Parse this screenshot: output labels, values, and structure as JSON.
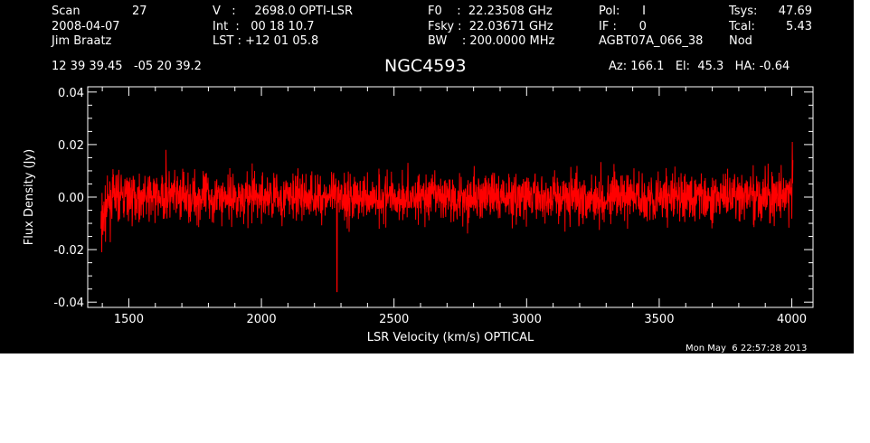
{
  "header": {
    "scan_label": "Scan",
    "scan_value": "27",
    "date": "2008-04-07",
    "observer": "Jim Braatz",
    "velocity": "V   :     2698.0 OPTI-LSR",
    "integration": "Int  :   00 18 10.7",
    "lst": "LST : +12 01 05.8",
    "f0": "F0    :  22.23508 GHz",
    "fsky": "Fsky :  22.03671 GHz",
    "bw": "BW    : 200.0000 MHz",
    "pol": "Pol:      I",
    "if": "IF :      0",
    "project": "AGBT07A_066_38",
    "tsys_label": "Tsys:",
    "tsys_value": "47.69",
    "tcal_label": "Tcal:",
    "tcal_value": "5.43",
    "mode": "Nod",
    "coords": "12 39 39.45   -05 20 39.2",
    "target": "NGC4593",
    "az_el_ha": "Az: 166.1   El:  45.3   HA: -0.64"
  },
  "timestamp": "Mon May  6 22:57:28 2013",
  "colors": {
    "background": "#000000",
    "axes": "#ffffff",
    "trace": "#ff0000"
  },
  "chart_data": {
    "type": "line",
    "title": "NGC4593",
    "xlabel": "LSR Velocity (km/s) OPTICAL",
    "ylabel": "Flux Density (Jy)",
    "xlim": [
      1345,
      4080
    ],
    "ylim": [
      -0.042,
      0.042
    ],
    "x_ticks": [
      1500,
      2000,
      2500,
      3000,
      3500,
      4000
    ],
    "x_tick_labels": [
      "1500",
      "2000",
      "2500",
      "3000",
      "3500",
      "4000"
    ],
    "y_ticks": [
      -0.04,
      -0.02,
      0.0,
      0.02,
      0.04
    ],
    "y_tick_labels": [
      "-0.04",
      "-0.02",
      "0.00",
      "0.02",
      "0.04"
    ],
    "series": [
      {
        "color": "#ff0000",
        "x_range": [
          1395,
          4005
        ],
        "baseline_envelope": [
          {
            "x": 1395,
            "y": -0.01
          },
          {
            "x": 1410,
            "y": -0.006
          },
          {
            "x": 1430,
            "y": -0.001
          },
          {
            "x": 1450,
            "y": 0.0
          },
          {
            "x": 4000,
            "y": 0.0
          },
          {
            "x": 4005,
            "y": 0.012
          }
        ],
        "noise_rms_jy": 0.0045,
        "features": [
          {
            "x": 2285,
            "y": -0.036
          },
          {
            "x": 1640,
            "y": 0.018
          },
          {
            "x": 1398,
            "y": -0.021
          },
          {
            "x": 4002,
            "y": 0.021
          }
        ]
      }
    ]
  }
}
